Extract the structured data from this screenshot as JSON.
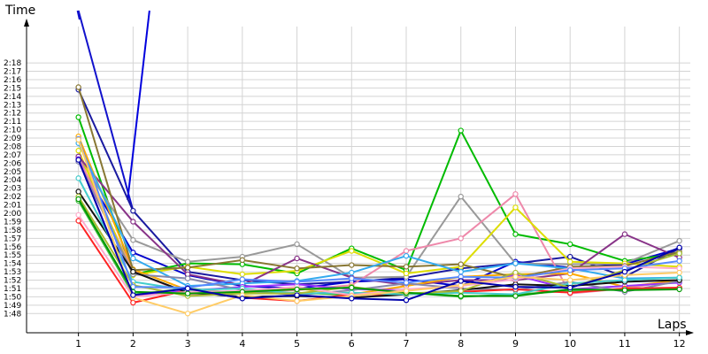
{
  "chart_data": {
    "type": "line",
    "title": "",
    "xlabel": "Laps",
    "ylabel": "Time",
    "x": [
      1,
      2,
      3,
      4,
      5,
      6,
      7,
      8,
      9,
      10,
      11,
      12
    ],
    "xlim": [
      0.05,
      12.2
    ],
    "ylim": [
      105.7,
      143.2
    ],
    "grid": true,
    "y_ticks": [
      {
        "v": 108,
        "label": "1:48"
      },
      {
        "v": 109,
        "label": "1:49"
      },
      {
        "v": 110,
        "label": "1:50"
      },
      {
        "v": 111,
        "label": "1:51"
      },
      {
        "v": 112,
        "label": "1:52"
      },
      {
        "v": 113,
        "label": "1:53"
      },
      {
        "v": 114,
        "label": "1:54"
      },
      {
        "v": 115,
        "label": "1:55"
      },
      {
        "v": 116,
        "label": "1:56"
      },
      {
        "v": 117,
        "label": "1:57"
      },
      {
        "v": 118,
        "label": "1:58"
      },
      {
        "v": 119,
        "label": "1:59"
      },
      {
        "v": 120,
        "label": "2:00"
      },
      {
        "v": 121,
        "label": "2:01"
      },
      {
        "v": 122,
        "label": "2:02"
      },
      {
        "v": 123,
        "label": "2:03"
      },
      {
        "v": 124,
        "label": "2:04"
      },
      {
        "v": 125,
        "label": "2:05"
      },
      {
        "v": 126,
        "label": "2:06"
      },
      {
        "v": 127,
        "label": "2:07"
      },
      {
        "v": 128,
        "label": "2:08"
      },
      {
        "v": 129,
        "label": "2:09"
      },
      {
        "v": 130,
        "label": "2:10"
      },
      {
        "v": 131,
        "label": "2:11"
      },
      {
        "v": 132,
        "label": "2:12"
      },
      {
        "v": 133,
        "label": "2:13"
      },
      {
        "v": 134,
        "label": "2:14"
      },
      {
        "v": 135,
        "label": "2:15"
      },
      {
        "v": 136,
        "label": "2:16"
      },
      {
        "v": 137,
        "label": "2:17"
      },
      {
        "v": 138,
        "label": "2:18"
      }
    ],
    "x_tick_labels": [
      "1",
      "2",
      "3",
      "4",
      "5",
      "6",
      "7",
      "8",
      "9",
      "10",
      "11",
      "12"
    ],
    "series": [
      {
        "color": "#1111cc",
        "values": [
          143.2,
          null,
          null,
          null,
          null,
          null,
          null,
          null,
          null,
          null,
          null,
          null
        ],
        "tail": [
          2,
          143.2
        ],
        "offscale_first": true
      },
      {
        "color": "#0000dd",
        "values": [
          null,
          143.2,
          null,
          null,
          null,
          null,
          null,
          null,
          null,
          null,
          null,
          null
        ],
        "note": "second off-scale line"
      },
      {
        "color": "#1a1aa0",
        "values": [
          134.8,
          120.3,
          113.0,
          112.0,
          111.5,
          111.8,
          112.3,
          113.4,
          114.0,
          114.8,
          112.4,
          115.8
        ]
      },
      {
        "color": "#0000cc",
        "values": [
          126.2,
          115.3,
          112.6,
          111.3,
          111.0,
          111.8,
          112.1,
          111.3,
          114.2,
          113.5,
          113.9,
          115.8
        ]
      },
      {
        "color": "#00bb00",
        "values": [
          131.5,
          112.7,
          114.0,
          113.9,
          112.8,
          115.8,
          113.2,
          129.9,
          117.5,
          116.3,
          114.3,
          115.2
        ]
      },
      {
        "color": "#999999",
        "values": [
          126.7,
          116.8,
          114.2,
          114.8,
          116.3,
          112.3,
          112.4,
          122.0,
          114.0,
          113.9,
          114.0,
          116.7
        ]
      },
      {
        "color": "#ee88aa",
        "values": [
          126.7,
          113.1,
          110.3,
          110.6,
          110.8,
          111.4,
          115.5,
          117.0,
          122.3,
          110.4,
          111.0,
          112.0
        ]
      },
      {
        "color": "#dddd00",
        "values": [
          127.5,
          112.6,
          113.6,
          112.7,
          113.1,
          115.5,
          112.8,
          113.6,
          120.7,
          114.2,
          114.0,
          113.6
        ]
      },
      {
        "color": "#883388",
        "values": [
          126.8,
          119.0,
          112.7,
          111.4,
          114.6,
          112.3,
          111.4,
          112.0,
          112.0,
          112.8,
          117.5,
          114.7
        ]
      },
      {
        "color": "#ffaa00",
        "values": [
          129.2,
          113.3,
          110.8,
          110.5,
          111.0,
          110.3,
          111.3,
          112.4,
          112.7,
          112.8,
          111.2,
          112.0
        ]
      },
      {
        "color": "#887733",
        "values": [
          135.1,
          113.2,
          113.5,
          114.4,
          113.4,
          113.8,
          113.6,
          113.9,
          112.3,
          113.6,
          113.7,
          115.4
        ]
      },
      {
        "color": "#33aaee",
        "values": [
          128.4,
          114.6,
          111.3,
          111.6,
          111.9,
          112.9,
          114.9,
          113.0,
          114.0,
          113.4,
          112.2,
          112.3
        ]
      },
      {
        "color": "#9933ff",
        "values": [
          126.5,
          110.2,
          110.7,
          111.2,
          111.5,
          110.9,
          110.8,
          111.3,
          112.6,
          110.9,
          111.3,
          111.7
        ]
      },
      {
        "color": "#8888aa",
        "values": [
          126.2,
          112.7,
          112.2,
          110.8,
          110.2,
          110.8,
          111.6,
          111.0,
          110.8,
          111.8,
          110.6,
          111.9
        ]
      },
      {
        "color": "#44bb44",
        "values": [
          121.5,
          110.3,
          111.0,
          110.4,
          110.5,
          110.2,
          110.5,
          110.0,
          110.3,
          110.7,
          110.9,
          111.0
        ]
      },
      {
        "color": "#ff2222",
        "values": [
          119.1,
          109.3,
          110.8,
          109.9,
          109.5,
          110.3,
          110.3,
          110.6,
          110.9,
          110.5,
          111.0,
          111.1
        ]
      },
      {
        "color": "#111111",
        "values": [
          122.6,
          113.0,
          110.5,
          110.0,
          110.1,
          109.9,
          110.3,
          110.8,
          111.5,
          111.3,
          111.8,
          112.0
        ]
      },
      {
        "color": "#44cccc",
        "values": [
          124.2,
          111.8,
          110.8,
          111.0,
          110.4,
          110.5,
          110.3,
          110.5,
          110.3,
          111.6,
          112.0,
          112.3
        ]
      },
      {
        "color": "#aabb33",
        "values": [
          122.0,
          111.4,
          110.1,
          110.4,
          110.4,
          111.2,
          110.4,
          110.7,
          112.9,
          111.1,
          113.2,
          115.2
        ]
      },
      {
        "color": "#ffaacc",
        "values": [
          119.8,
          110.0,
          110.6,
          110.7,
          111.2,
          110.2,
          110.9,
          111.3,
          112.1,
          113.4,
          113.6,
          113.4
        ]
      },
      {
        "color": "#5588ff",
        "values": [
          128.9,
          111.2,
          111.1,
          112.1,
          111.8,
          112.2,
          111.7,
          112.4,
          112.3,
          113.2,
          113.4,
          114.3
        ]
      },
      {
        "color": "#009900",
        "values": [
          121.7,
          110.6,
          110.4,
          110.6,
          110.9,
          111.1,
          110.5,
          110.1,
          110.1,
          110.9,
          110.8,
          110.9
        ]
      },
      {
        "color": "#ffcc66",
        "values": [
          128.8,
          109.9,
          108.0,
          110.2,
          109.5,
          110.1,
          110.7,
          111.4,
          112.4,
          112.0,
          112.6,
          112.9
        ]
      },
      {
        "color": "#0000aa",
        "values": [
          126.4,
          110.2,
          111.0,
          109.8,
          110.2,
          109.8,
          109.6,
          111.9,
          111.2,
          111.1,
          113.0,
          115.9
        ]
      }
    ]
  }
}
